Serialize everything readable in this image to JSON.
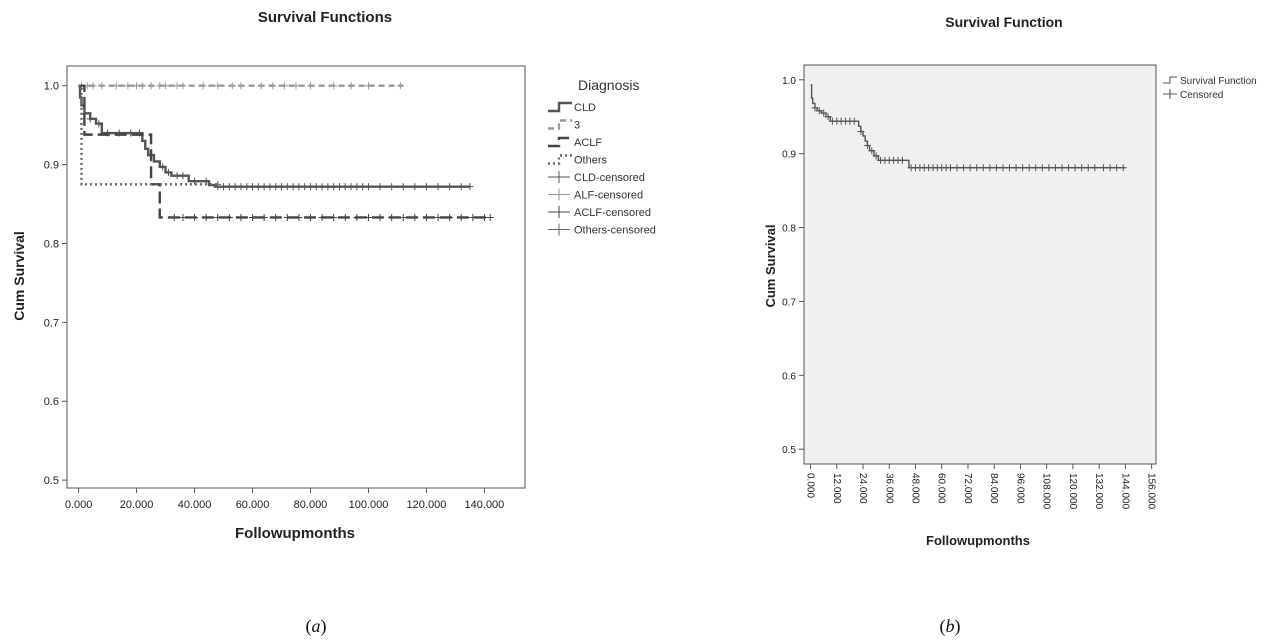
{
  "chart_data": [
    {
      "id": "a",
      "type": "line",
      "subtype": "kaplan-meier-step",
      "title": "Survival Functions",
      "xlabel": "Followupmonths",
      "ylabel": "Cum Survival",
      "xlim": [
        -4,
        154
      ],
      "ylim": [
        0.49,
        1.025
      ],
      "xticks": [
        0,
        20,
        40,
        60,
        80,
        100,
        120,
        140
      ],
      "xtick_labels": [
        "0.000",
        "20.000",
        "40.000",
        "60.000",
        "80.000",
        "100.000",
        "120.000",
        "140.000"
      ],
      "yticks": [
        0.5,
        0.6,
        0.7,
        0.8,
        0.9,
        1.0
      ],
      "ytick_labels": [
        "0.5",
        "0.6",
        "0.7",
        "0.8",
        "0.9",
        "1.0"
      ],
      "grid": false,
      "legend_title": "Diagnosis",
      "legend_placement": "right",
      "legend": [
        "CLD",
        "3",
        "ACLF",
        "Others",
        "CLD-censored",
        "ALF-censored",
        "ACLF-censored",
        "Others-censored"
      ],
      "series": [
        {
          "name": "CLD",
          "color": "#555555",
          "dash": "solid",
          "x": [
            0,
            0.5,
            1,
            2,
            4,
            6,
            8,
            22,
            23,
            24,
            26,
            28,
            30,
            32,
            38,
            45,
            47,
            135
          ],
          "y": [
            1.0,
            0.985,
            0.975,
            0.965,
            0.958,
            0.952,
            0.94,
            0.93,
            0.92,
            0.912,
            0.904,
            0.897,
            0.89,
            0.886,
            0.879,
            0.874,
            0.872,
            0.872
          ],
          "censored_x": [
            2,
            4,
            7,
            10,
            14,
            18,
            21,
            25,
            29,
            31,
            34,
            36,
            40,
            44,
            48,
            50,
            52,
            54,
            56,
            58,
            60,
            62,
            64,
            66,
            68,
            70,
            72,
            74,
            76,
            78,
            80,
            82,
            84,
            86,
            88,
            90,
            92,
            94,
            96,
            98,
            100,
            104,
            108,
            112,
            116,
            120,
            124,
            128,
            132,
            135
          ]
        },
        {
          "name": "3",
          "color": "#999999",
          "dash": "dashed",
          "x": [
            0,
            112
          ],
          "y": [
            1.0,
            1.0
          ],
          "censored_x": [
            1,
            3,
            5,
            8,
            13,
            17,
            20,
            22,
            25,
            28,
            30,
            34,
            36,
            43,
            48,
            53,
            56,
            63,
            67,
            71,
            75,
            80,
            88,
            94,
            100,
            111
          ]
        },
        {
          "name": "ACLF",
          "color": "#444444",
          "dash": "longdash",
          "x": [
            0,
            2,
            25,
            28,
            142
          ],
          "y": [
            1.0,
            0.938,
            0.875,
            0.833,
            0.833
          ],
          "censored_x": [
            33,
            36,
            40,
            44,
            48,
            52,
            56,
            60,
            64,
            68,
            72,
            76,
            80,
            84,
            88,
            92,
            96,
            100,
            104,
            108,
            112,
            116,
            120,
            124,
            128,
            132,
            136,
            140,
            142
          ]
        },
        {
          "name": "Others",
          "color": "#666666",
          "dash": "dotted",
          "x": [
            0,
            1,
            48
          ],
          "y": [
            1.0,
            0.875,
            0.875
          ],
          "censored_x": [
            48
          ]
        }
      ]
    },
    {
      "id": "b",
      "type": "line",
      "subtype": "kaplan-meier-step",
      "title": "Survival Function",
      "xlabel": "Followupmonths",
      "ylabel": "Cum Survival",
      "xlim": [
        -3,
        158
      ],
      "ylim": [
        0.48,
        1.02
      ],
      "xticks": [
        0,
        12,
        24,
        36,
        48,
        60,
        72,
        84,
        96,
        108,
        120,
        132,
        144,
        156
      ],
      "xtick_labels": [
        "0.000",
        "12.000",
        "24.000",
        "36.000",
        "48.000",
        "60.000",
        "72.000",
        "84.000",
        "96.000",
        "108.000",
        "120.000",
        "132.000",
        "144.000",
        "156.000"
      ],
      "yticks": [
        0.5,
        0.6,
        0.7,
        0.8,
        0.9,
        1.0
      ],
      "ytick_labels": [
        "0.5",
        "0.6",
        "0.7",
        "0.8",
        "0.9",
        "1.0"
      ],
      "grid": false,
      "legend_placement": "top-right",
      "legend": [
        "Survival Function",
        "Censored"
      ],
      "series": [
        {
          "name": "Survival Function",
          "color": "#555555",
          "dash": "solid",
          "x": [
            0,
            0.5,
            1,
            2,
            3,
            5,
            7,
            9,
            22,
            23,
            24,
            25,
            26,
            27,
            29,
            31,
            45,
            144
          ],
          "y": [
            0.993,
            0.975,
            0.968,
            0.962,
            0.958,
            0.955,
            0.95,
            0.944,
            0.937,
            0.93,
            0.924,
            0.917,
            0.911,
            0.904,
            0.897,
            0.891,
            0.881,
            0.881
          ],
          "censored_x": [
            2,
            4,
            6,
            8,
            10,
            12,
            14,
            16,
            18,
            20,
            23,
            26,
            28,
            30,
            32,
            34,
            36,
            38,
            40,
            42,
            46,
            48,
            50,
            52,
            54,
            56,
            58,
            60,
            62,
            64,
            67,
            70,
            73,
            76,
            79,
            82,
            85,
            88,
            91,
            94,
            97,
            100,
            103,
            106,
            109,
            112,
            115,
            118,
            121,
            124,
            127,
            130,
            134,
            137,
            140,
            143
          ]
        }
      ]
    }
  ],
  "captions": {
    "a": "a",
    "b": "b"
  }
}
